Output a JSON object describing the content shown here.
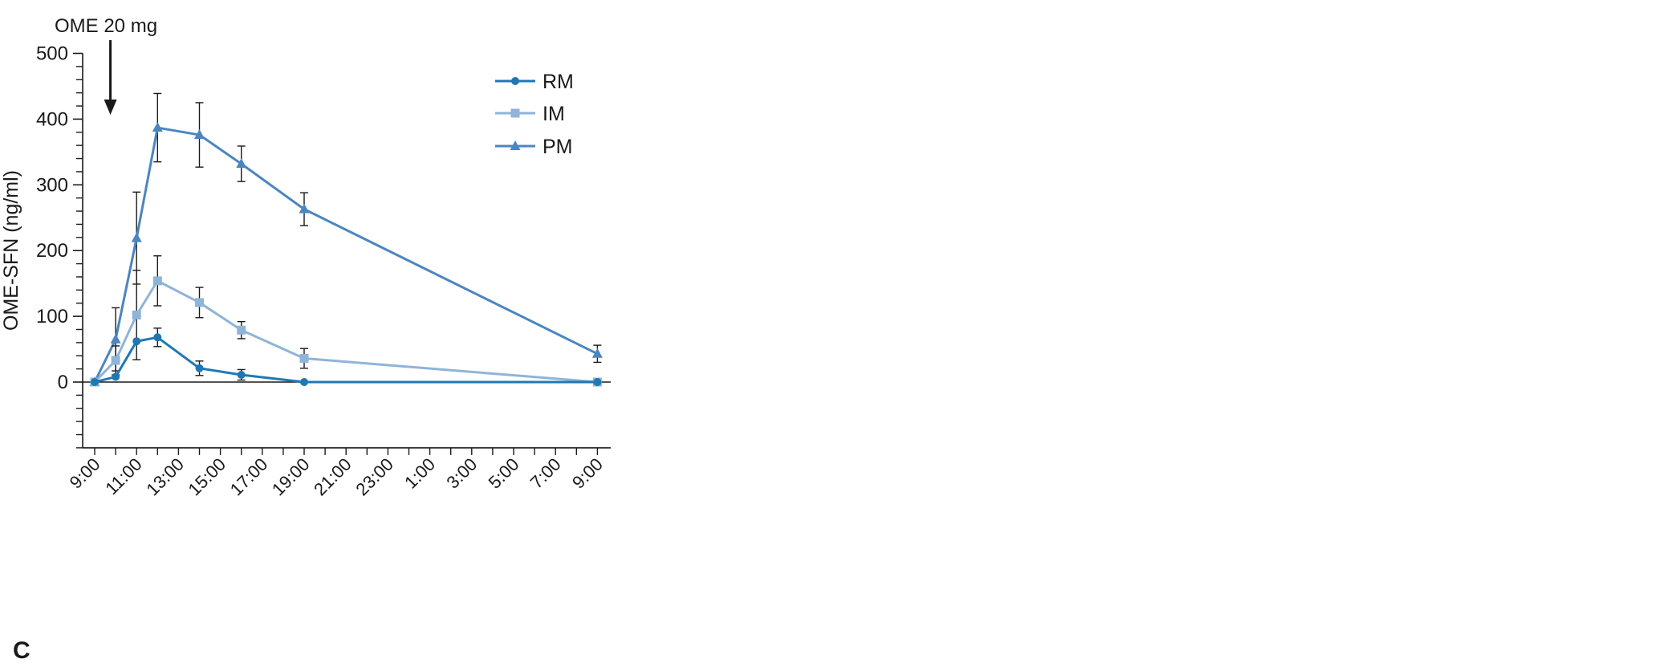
{
  "chart_data": {
    "type": "line",
    "panel_label": "C",
    "annotation": {
      "text": "OME 20 mg",
      "x": "9:45"
    },
    "ylabel": "OME-SFN (ng/ml)",
    "xlabel": "",
    "ylim": [
      -100,
      500
    ],
    "yticks_labeled": [
      0,
      100,
      200,
      300,
      400,
      500
    ],
    "ytick_step_minor": 20,
    "x_tick_labels": [
      "9:00",
      "11:00",
      "13:00",
      "15:00",
      "17:00",
      "19:00",
      "21:00",
      "23:00",
      "1:00",
      "3:00",
      "5:00",
      "7:00",
      "9:00"
    ],
    "x_minor_ticks_per_hour": true,
    "legend": {
      "position": "top-right",
      "entries": [
        "RM",
        "IM",
        "PM"
      ]
    },
    "colors": {
      "RM": "#1f78b4",
      "IM": "#8fb4d9",
      "PM": "#4a86c0",
      "error_bars": "#1a1a1a",
      "axis": "#1a1a1a"
    },
    "series": [
      {
        "name": "RM",
        "marker": "circle",
        "x": [
          "9:00",
          "10:00",
          "11:00",
          "12:00",
          "14:00",
          "16:00",
          "19:00",
          "9:00"
        ],
        "y": [
          0,
          8,
          62,
          68,
          21,
          11,
          0,
          0
        ],
        "err": [
          0,
          0,
          0,
          14,
          11,
          8,
          0,
          0
        ]
      },
      {
        "name": "IM",
        "marker": "square",
        "x": [
          "9:00",
          "10:00",
          "11:00",
          "12:00",
          "14:00",
          "16:00",
          "19:00",
          "9:00"
        ],
        "y": [
          0,
          33,
          102,
          154,
          121,
          79,
          36,
          0
        ],
        "err": [
          0,
          22,
          68,
          38,
          23,
          13,
          15,
          0
        ]
      },
      {
        "name": "PM",
        "marker": "triangle",
        "x": [
          "9:00",
          "10:00",
          "11:00",
          "12:00",
          "14:00",
          "16:00",
          "19:00",
          "9:00"
        ],
        "y": [
          0,
          65,
          219,
          387,
          376,
          332,
          263,
          43
        ],
        "err": [
          0,
          48,
          70,
          52,
          49,
          27,
          25,
          13
        ]
      }
    ]
  }
}
